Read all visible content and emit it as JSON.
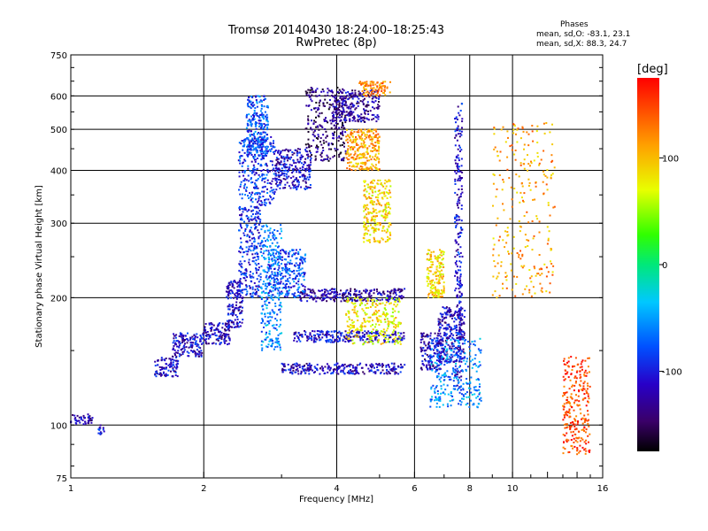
{
  "header": {
    "title": "Tromsø 20140430 18:24:00–18:25:43",
    "subtitle": "RwPretec (8p)"
  },
  "phases_box": {
    "heading": "Phases",
    "line_o": "mean, sd,O: -83.1, 23.1",
    "line_x": "mean, sd,X: 88.3, 24.7"
  },
  "colorbar": {
    "unit_label": "[deg]",
    "ticks": [
      {
        "value": 100,
        "label": "100"
      },
      {
        "value": 0,
        "label": "0"
      },
      {
        "value": -100,
        "label": "-100"
      }
    ]
  },
  "chart_data": {
    "type": "scatter",
    "xlabel": "Frequency [MHz]",
    "ylabel": "Stationary phase Virtual Height [km]",
    "xscale": "log",
    "yscale": "log",
    "xlim": [
      1,
      16
    ],
    "ylim": [
      75,
      750
    ],
    "x_ticks": [
      {
        "value": 1,
        "label": "1"
      },
      {
        "value": 2,
        "label": "2"
      },
      {
        "value": 4,
        "label": "4"
      },
      {
        "value": 6,
        "label": "6"
      },
      {
        "value": 8,
        "label": "8"
      },
      {
        "value": 10,
        "label": "10"
      },
      {
        "value": 16,
        "label": "16"
      }
    ],
    "y_ticks": [
      {
        "value": 75,
        "label": "75"
      },
      {
        "value": 100,
        "label": "100"
      },
      {
        "value": 200,
        "label": "200"
      },
      {
        "value": 300,
        "label": "300"
      },
      {
        "value": 400,
        "label": "400"
      },
      {
        "value": 500,
        "label": "500"
      },
      {
        "value": 600,
        "label": "600"
      },
      {
        "value": 750,
        "label": "750"
      }
    ],
    "grid": true,
    "color_scale": {
      "min": -175,
      "max": 175,
      "unit": "deg"
    },
    "clusters": [
      {
        "x": [
          1.0,
          1.12
        ],
        "y": [
          100,
          106
        ],
        "phase": -120
      },
      {
        "x": [
          1.15,
          1.2
        ],
        "y": [
          95,
          100
        ],
        "phase": -110
      },
      {
        "x": [
          1.55,
          1.75
        ],
        "y": [
          130,
          145
        ],
        "phase": -110
      },
      {
        "x": [
          1.7,
          2.0
        ],
        "y": [
          145,
          165
        ],
        "phase": -110
      },
      {
        "x": [
          2.0,
          2.3
        ],
        "y": [
          155,
          175
        ],
        "phase": -115
      },
      {
        "x": [
          2.25,
          2.45
        ],
        "y": [
          170,
          220
        ],
        "phase": -110
      },
      {
        "x": [
          2.4,
          2.7
        ],
        "y": [
          200,
          330
        ],
        "phase": -95
      },
      {
        "x": [
          2.4,
          2.9
        ],
        "y": [
          330,
          480
        ],
        "phase": -90
      },
      {
        "x": [
          2.5,
          2.8
        ],
        "y": [
          430,
          600
        ],
        "phase": -80
      },
      {
        "x": [
          2.7,
          3.0
        ],
        "y": [
          150,
          300
        ],
        "phase": -60
      },
      {
        "x": [
          2.9,
          3.5
        ],
        "y": [
          360,
          450
        ],
        "phase": -110
      },
      {
        "x": [
          3.4,
          4.2
        ],
        "y": [
          420,
          630
        ],
        "phase": -140
      },
      {
        "x": [
          3.9,
          5.0
        ],
        "y": [
          520,
          620
        ],
        "phase": -125
      },
      {
        "x": [
          4.5,
          5.3
        ],
        "y": [
          600,
          650
        ],
        "phase": 120
      },
      {
        "x": [
          4.2,
          5.0
        ],
        "y": [
          400,
          500
        ],
        "phase": 110
      },
      {
        "x": [
          4.6,
          5.3
        ],
        "y": [
          270,
          380
        ],
        "phase": 90
      },
      {
        "x": [
          3.0,
          5.7
        ],
        "y": [
          132,
          140
        ],
        "phase": -115
      },
      {
        "x": [
          3.2,
          5.7
        ],
        "y": [
          157,
          167
        ],
        "phase": -110
      },
      {
        "x": [
          3.3,
          5.7
        ],
        "y": [
          196,
          210
        ],
        "phase": -120
      },
      {
        "x": [
          4.2,
          5.6
        ],
        "y": [
          155,
          200
        ],
        "phase": 80
      },
      {
        "x": [
          2.8,
          3.4
        ],
        "y": [
          200,
          260
        ],
        "phase": -80
      },
      {
        "x": [
          6.2,
          6.9
        ],
        "y": [
          135,
          165
        ],
        "phase": -120
      },
      {
        "x": [
          6.4,
          7.0
        ],
        "y": [
          200,
          260
        ],
        "phase": 90
      },
      {
        "x": [
          6.8,
          7.8
        ],
        "y": [
          140,
          190
        ],
        "phase": -115
      },
      {
        "x": [
          7.4,
          7.7
        ],
        "y": [
          120,
          580
        ],
        "phase": -105
      },
      {
        "x": [
          6.5,
          8.5
        ],
        "y": [
          110,
          160
        ],
        "phase": -60
      },
      {
        "x": [
          9.0,
          12.5
        ],
        "y": [
          200,
          520
        ],
        "phase": 110
      },
      {
        "x": [
          13.0,
          15.0
        ],
        "y": [
          85,
          145
        ],
        "phase": 150
      }
    ]
  }
}
